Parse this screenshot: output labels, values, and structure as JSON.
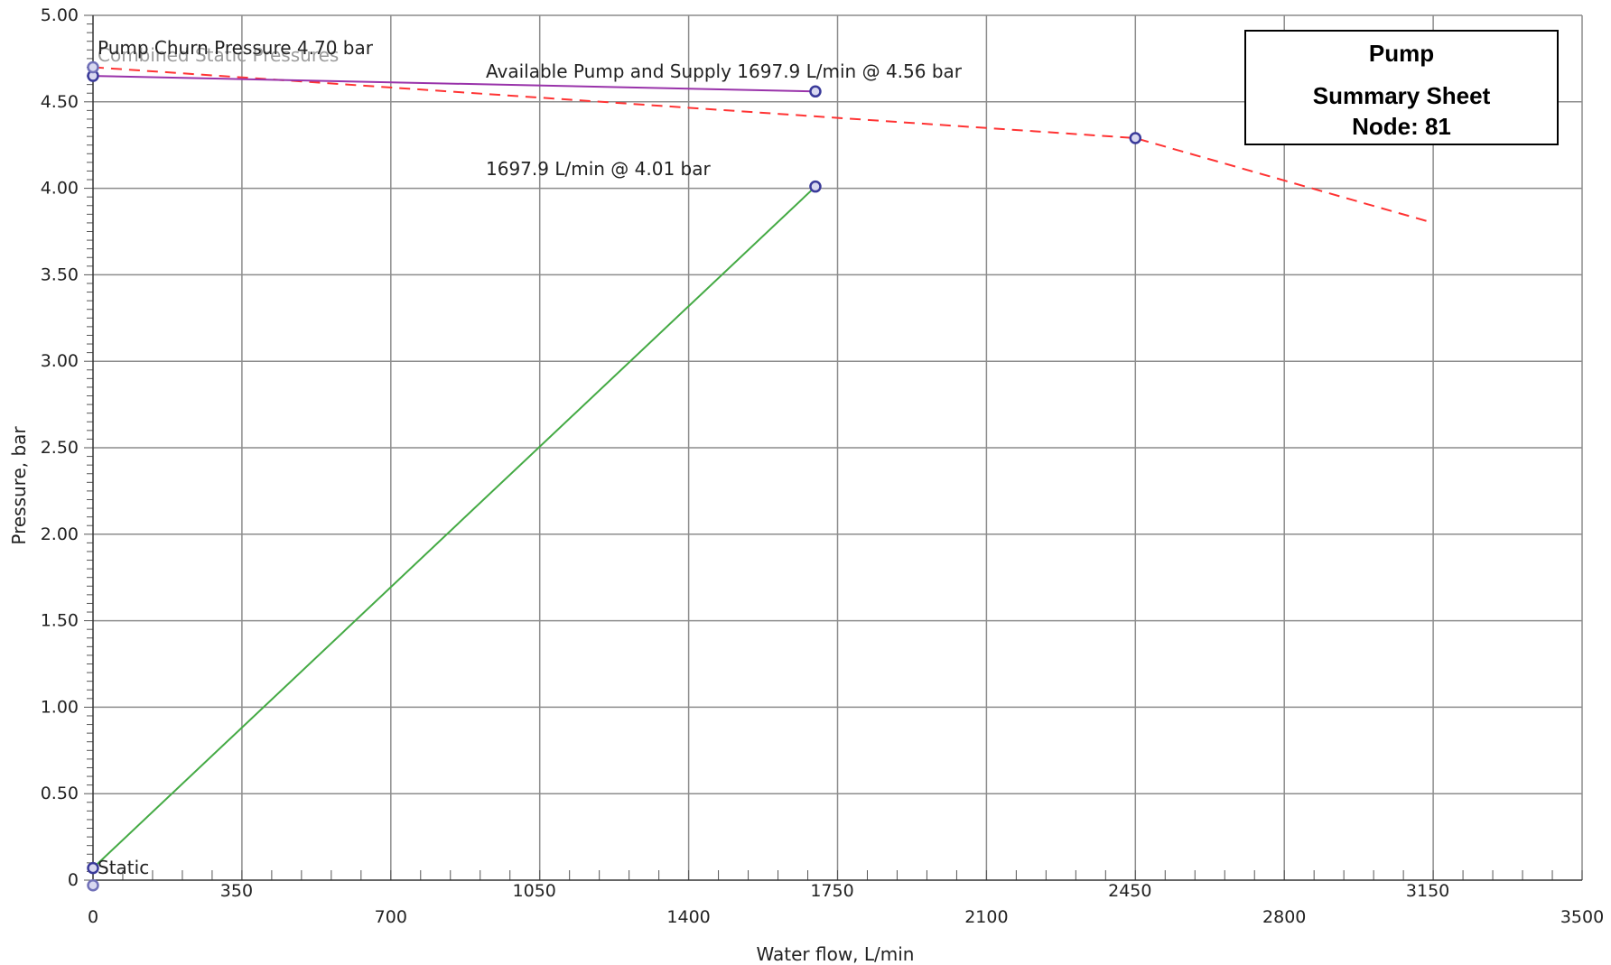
{
  "chart_data": {
    "type": "line",
    "xlabel": "Water flow, L/min",
    "ylabel": "Pressure, bar",
    "xlim": [
      0,
      3500
    ],
    "ylim": [
      0,
      5.0
    ],
    "grid": true,
    "x_ticks_lower": [
      "0",
      "700",
      "1400",
      "2100",
      "2800",
      "3500"
    ],
    "x_ticks_upper": [
      "350",
      "1050",
      "1750",
      "2450",
      "3150"
    ],
    "y_ticks": [
      "0",
      "0.50",
      "1.00",
      "1.50",
      "2.00",
      "2.50",
      "3.00",
      "3.50",
      "4.00",
      "4.50",
      "5.00"
    ],
    "series": [
      {
        "key": "pump_curve",
        "color": "#ff3333",
        "style": "dashed",
        "marker_at": [
          2450
        ],
        "points": [
          [
            0,
            4.7
          ],
          [
            2450,
            4.29
          ],
          [
            3150,
            3.8
          ]
        ]
      },
      {
        "key": "available",
        "color": "#9933aa",
        "style": "solid",
        "marker_at": [
          0,
          1697.9
        ],
        "points": [
          [
            0,
            4.65
          ],
          [
            1697.9,
            4.56
          ]
        ]
      },
      {
        "key": "demand",
        "color": "#44aa44",
        "style": "solid",
        "marker_at": [
          0,
          1697.9
        ],
        "points": [
          [
            0,
            0.07
          ],
          [
            1697.9,
            4.01
          ]
        ]
      }
    ],
    "extra_markers": [
      [
        0,
        4.7
      ],
      [
        0,
        -0.03
      ]
    ],
    "annotations": {
      "churn": "Pump Churn Pressure 4.70 bar",
      "combined": "Combined Static Pressures",
      "available": "Available Pump and Supply 1697.9 L/min @ 4.56 bar",
      "demand": "1697.9 L/min @ 4.01 bar",
      "static": "Static"
    }
  },
  "summary_box": {
    "line1": "Pump",
    "line2": "Summary Sheet",
    "line3": "Node: 81"
  }
}
